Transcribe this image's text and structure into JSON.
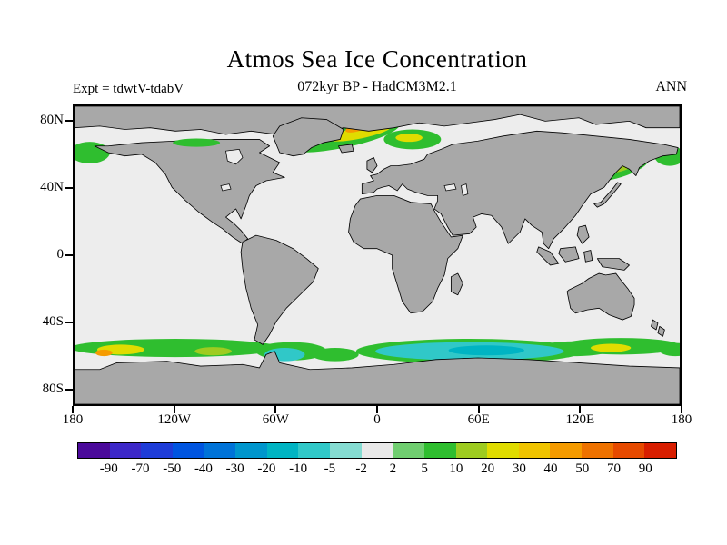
{
  "header": {
    "title": "Atmos Sea Ice Concentration",
    "subtitle": "072kyr BP - HadCM3M2.1",
    "experiment": "Expt = tdwtV-tdabV",
    "season": "ANN"
  },
  "map": {
    "y_ticks": [
      "80N",
      "40N",
      "0",
      "40S",
      "80S"
    ],
    "x_ticks": [
      "180",
      "120W",
      "60W",
      "0",
      "60E",
      "120E",
      "180"
    ],
    "land_color": "#a8a8a8",
    "ocean_color": "#ededed",
    "coast_color": "#000000"
  },
  "colorbar": {
    "labels": [
      "-90",
      "-70",
      "-50",
      "-40",
      "-30",
      "-20",
      "-10",
      "-5",
      "-2",
      "2",
      "5",
      "10",
      "20",
      "30",
      "40",
      "50",
      "70",
      "90"
    ],
    "colors": [
      "#4b0a9b",
      "#3c28c8",
      "#1e3cd8",
      "#0055e0",
      "#0073d8",
      "#0096cd",
      "#00b4c3",
      "#30c8c8",
      "#85dcd2",
      "#e9e9e9",
      "#70ce70",
      "#2fbe2f",
      "#9ecc20",
      "#e0dc00",
      "#f0c400",
      "#f59b00",
      "#ee7200",
      "#e64a00",
      "#d81e00"
    ]
  },
  "chart_data": {
    "type": "heatmap",
    "title": "Atmos Sea Ice Concentration",
    "subtitle": "072kyr BP - HadCM3M2.1",
    "experiment": "tdwtV-tdabV",
    "season": "ANN",
    "projection": "equirectangular world map, lon -180 to 180, lat -90 to 90",
    "x_ticks_deg": [
      -180,
      -120,
      -60,
      0,
      60,
      120,
      180
    ],
    "y_ticks_deg": [
      80,
      40,
      0,
      -40,
      -80
    ],
    "contour_levels": [
      -90,
      -70,
      -50,
      -40,
      -30,
      -20,
      -10,
      -5,
      -2,
      2,
      5,
      10,
      20,
      30,
      40,
      50,
      70,
      90
    ],
    "palette": [
      "#4b0a9b",
      "#3c28c8",
      "#1e3cd8",
      "#0055e0",
      "#0073d8",
      "#0096cd",
      "#00b4c3",
      "#30c8c8",
      "#85dcd2",
      "#e9e9e9",
      "#70ce70",
      "#2fbe2f",
      "#9ecc20",
      "#e0dc00",
      "#f0c400",
      "#f59b00",
      "#ee7200",
      "#e64a00",
      "#d81e00"
    ],
    "legend_position": "bottom",
    "grid": false,
    "anomaly_regions": [
      {
        "region": "Nordic Seas / E Greenland coast to Svalbard and Norwegian Sea",
        "lon_range": [
          -45,
          30
        ],
        "lat_range": [
          60,
          80
        ],
        "value_range": "+5 to +40"
      },
      {
        "region": "Bering Sea / far NW Pacific (left and right map edges)",
        "lon_range": [
          -180,
          -150
        ],
        "lat_range": [
          52,
          68
        ],
        "value_range": "+5 to +10"
      },
      {
        "region": "Canadian Arctic archipelago channels",
        "lon_range": [
          -130,
          -90
        ],
        "lat_range": [
          63,
          72
        ],
        "value_range": "+2 to +10"
      },
      {
        "region": "Sea of Okhotsk / Kamchatka coast",
        "lon_range": [
          135,
          170
        ],
        "lat_range": [
          45,
          60
        ],
        "value_range": "+5 to +20"
      },
      {
        "region": "Southern Ocean, Atlantic-Indian sector",
        "lon_range": [
          -5,
          110
        ],
        "lat_range": [
          -50,
          -67
        ],
        "value_range": "-5 to -20 (cyan) with green +5 fringe"
      },
      {
        "region": "Southern Ocean south of South America / Drake Passage",
        "lon_range": [
          -75,
          -40
        ],
        "lat_range": [
          -52,
          -63
        ],
        "value_range": "-5 to -15 core within +5 to +10 band"
      },
      {
        "region": "Southern Ocean, Pacific sector",
        "lon_range": [
          -180,
          -60
        ],
        "lat_range": [
          -52,
          -66
        ],
        "value_range": "+5 to +40 patches"
      },
      {
        "region": "South of Australia / New Zealand",
        "lon_range": [
          110,
          180
        ],
        "lat_range": [
          -52,
          -64
        ],
        "value_range": "+5 to +30"
      }
    ]
  }
}
